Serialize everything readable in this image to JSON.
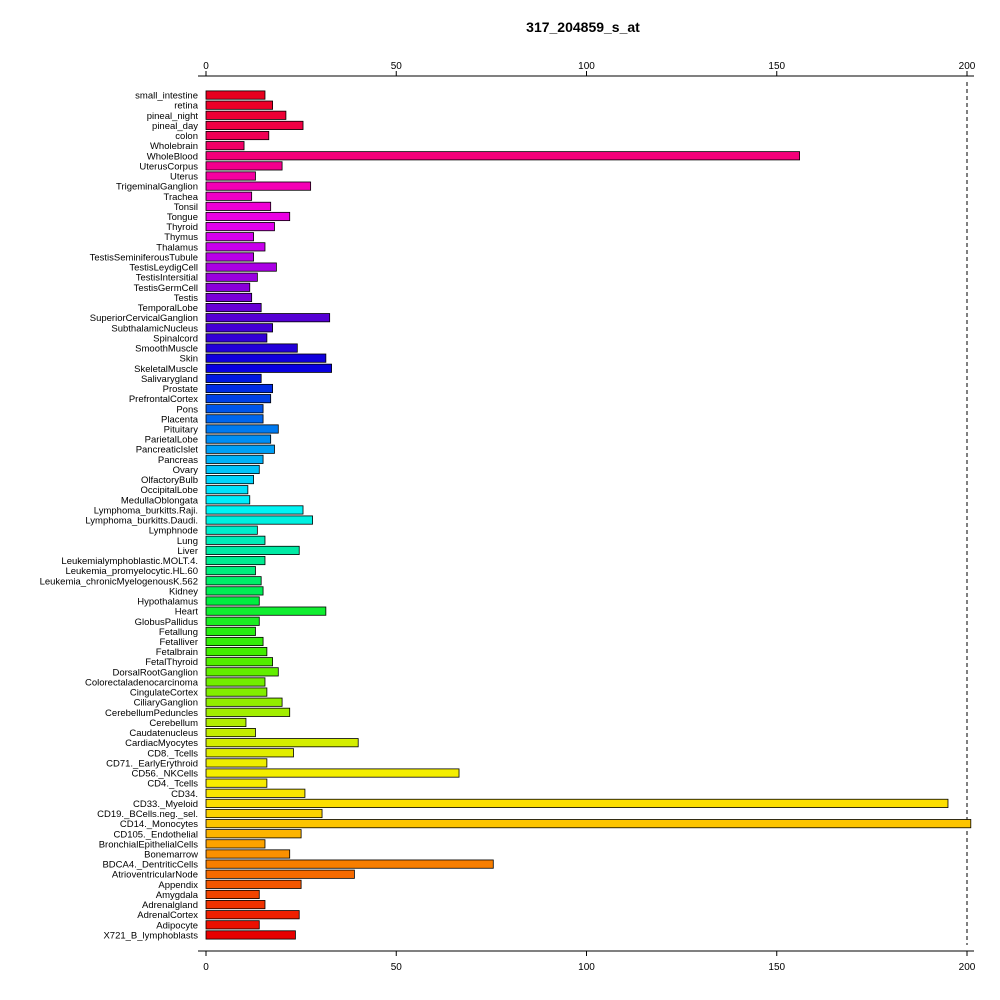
{
  "chart_data": {
    "type": "bar",
    "orientation": "horizontal",
    "title": "317_204859_s_at",
    "xlim": [
      0,
      200
    ],
    "x_ticks": [
      0,
      50,
      100,
      150,
      200
    ],
    "reference_line": 200,
    "categories": [
      "small_intestine",
      "retina",
      "pineal_night",
      "pineal_day",
      "colon",
      "Wholebrain",
      "WholeBlood",
      "UterusCorpus",
      "Uterus",
      "TrigeminalGanglion",
      "Trachea",
      "Tonsil",
      "Tongue",
      "Thyroid",
      "Thymus",
      "Thalamus",
      "TestisSeminiferousTubule",
      "TestisLeydigCell",
      "TestisIntersitial",
      "TestisGermCell",
      "Testis",
      "TemporalLobe",
      "SuperiorCervicalGanglion",
      "SubthalamicNucleus",
      "Spinalcord",
      "SmoothMuscle",
      "Skin",
      "SkeletalMuscle",
      "Salivarygland",
      "Prostate",
      "PrefrontalCortex",
      "Pons",
      "Placenta",
      "Pituitary",
      "ParietalLobe",
      "PancreaticIslet",
      "Pancreas",
      "Ovary",
      "OlfactoryBulb",
      "OccipitalLobe",
      "MedullaOblongata",
      "Lymphoma_burkitts.Raji.",
      "Lymphoma_burkitts.Daudi.",
      "Lymphnode",
      "Lung",
      "Liver",
      "Leukemialymphoblastic.MOLT.4.",
      "Leukemia_promyelocytic.HL.60",
      "Leukemia_chronicMyelogenousK.562",
      "Kidney",
      "Hypothalamus",
      "Heart",
      "GlobusPallidus",
      "Fetallung",
      "Fetalliver",
      "Fetalbrain",
      "FetalThyroid",
      "DorsalRootGanglion",
      "Colorectaladenocarcinoma",
      "CingulateCortex",
      "CiliaryGanglion",
      "CerebellumPeduncles",
      "Cerebellum",
      "Caudatenucleus",
      "CardiacMyocytes",
      "CD8._Tcells",
      "CD71._EarlyErythroid",
      "CD56._NKCells",
      "CD4._Tcells",
      "CD34.",
      "CD33._Myeloid",
      "CD19._BCells.neg._sel.",
      "CD14._Monocytes",
      "CD105._Endothelial",
      "BronchialEpithelialCells",
      "Bonemarrow",
      "BDCA4._DentriticCells",
      "AtrioventricularNode",
      "Appendix",
      "Amygdala",
      "Adrenalgland",
      "AdrenalCortex",
      "Adipocyte",
      "X721_B_lymphoblasts"
    ],
    "values": [
      15.5,
      17.5,
      21,
      25.5,
      16.5,
      10,
      156,
      20,
      13,
      27.5,
      12,
      17,
      22,
      18,
      12.5,
      15.5,
      12.5,
      18.5,
      13.5,
      11.5,
      12,
      14.5,
      32.5,
      17.5,
      16,
      24,
      31.5,
      33,
      14.5,
      17.5,
      17,
      15,
      15,
      19,
      17,
      18,
      15,
      14,
      12.5,
      11,
      11.5,
      25.5,
      28,
      13.5,
      15.5,
      24.5,
      15.5,
      13,
      14.5,
      15,
      14,
      31.5,
      14,
      13,
      15,
      16,
      17.5,
      19,
      15.5,
      16,
      20,
      22,
      10.5,
      13,
      40,
      23,
      16,
      66.5,
      16,
      26,
      195,
      30.5,
      201,
      25,
      15.5,
      22,
      75.5,
      39,
      25,
      14,
      15.5,
      24.5,
      14,
      23.5
    ],
    "colors": [
      "#E8001F",
      "#EC0028",
      "#EE0035",
      "#F10043",
      "#F20055",
      "#F20067",
      "#F4007A",
      "#F4008D",
      "#F500A0",
      "#F400B5",
      "#F100C6",
      "#EF00D5",
      "#EA00E4",
      "#E200EC",
      "#D500EE",
      "#C800EC",
      "#B900E8",
      "#AA00E4",
      "#9A00E0",
      "#8A00DB",
      "#7A00D8",
      "#6800D6",
      "#5500D4",
      "#4400D4",
      "#3300D6",
      "#2200D8",
      "#1000DC",
      "#0800E0",
      "#0018E0",
      "#002CE4",
      "#0040E6",
      "#0055EA",
      "#0066EE",
      "#007AF0",
      "#008EF4",
      "#00A0F6",
      "#00B2F8",
      "#00C4FA",
      "#00D4FC",
      "#00E2FC",
      "#00EEFC",
      "#00F4F4",
      "#00F0E0",
      "#00EECC",
      "#00ECB8",
      "#00EAA4",
      "#00EC90",
      "#00EE7C",
      "#00EE68",
      "#00EE54",
      "#00EE40",
      "#10EE30",
      "#1AEE22",
      "#26EE10",
      "#34EE08",
      "#42EE00",
      "#52EE00",
      "#62EE00",
      "#72EE00",
      "#82EE00",
      "#92EE00",
      "#A2EE00",
      "#B2EE00",
      "#C4EE00",
      "#D4EE00",
      "#E2EE00",
      "#EEEE00",
      "#F4EE00",
      "#F8EC00",
      "#FAE600",
      "#FCDE00",
      "#FCD200",
      "#FCC400",
      "#FCB400",
      "#FCA200",
      "#FA9000",
      "#F87E00",
      "#F66A00",
      "#F45600",
      "#F24400",
      "#F03200",
      "#EE2000",
      "#EC1000",
      "#E80000"
    ]
  }
}
